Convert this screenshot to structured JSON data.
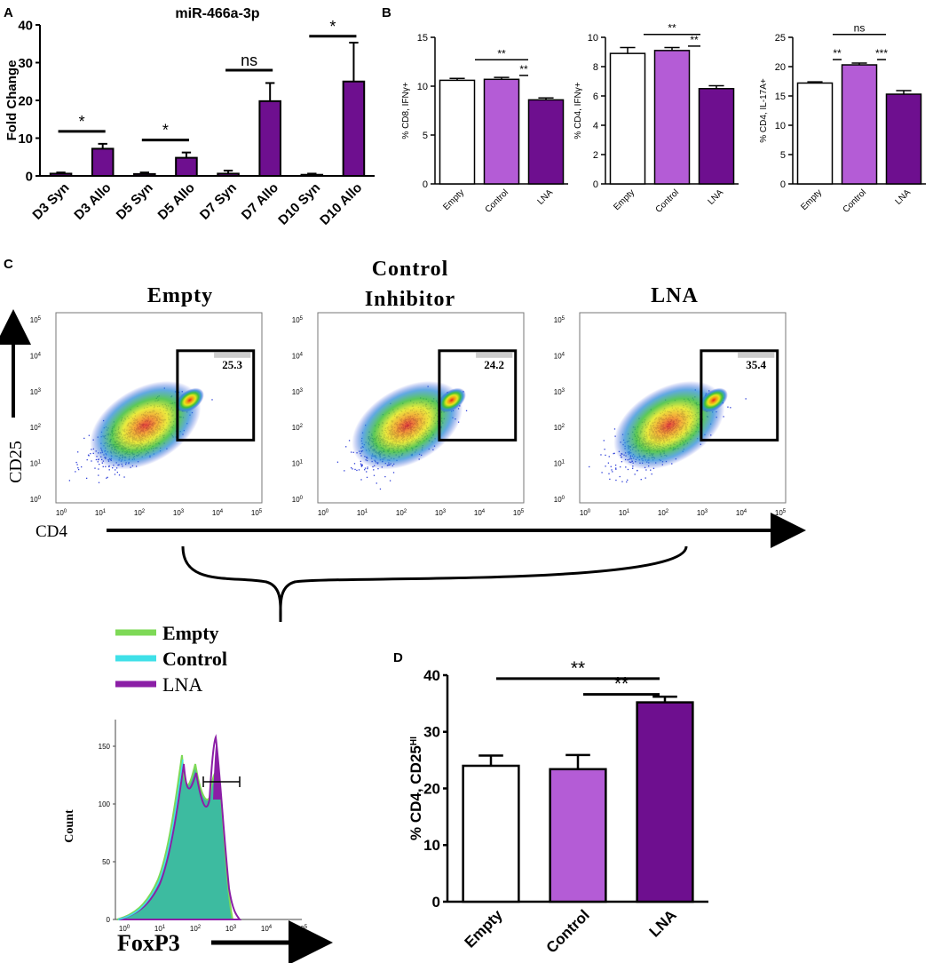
{
  "panel_labels": {
    "a": "A",
    "b": "B",
    "c": "C",
    "d": "D"
  },
  "colors": {
    "empty_fill": "#ffffff",
    "control_fill": "#b45cd6",
    "lna_fill": "#6e0f8f",
    "syn_fill": "#6e0f8f",
    "hist_empty": "#7ed957",
    "hist_control": "#3fe0e8",
    "hist_lna": "#8b1fa6",
    "hist_fill": "#3dbba0"
  },
  "chart_data": [
    {
      "id": "A",
      "type": "bar",
      "title": "miR-466a-3p",
      "ylabel": "Fold Change",
      "ylim": [
        0,
        40
      ],
      "yticks": [
        "0",
        "10",
        "20",
        "30",
        "40"
      ],
      "categories": [
        "D3 Syn",
        "D3 Allo",
        "D5 Syn",
        "D5 Allo",
        "D7 Syn",
        "D7 Allo",
        "D10 Syn",
        "D10 Allo"
      ],
      "values": [
        0.6,
        7.2,
        0.5,
        4.8,
        0.6,
        19.8,
        0.3,
        25
      ],
      "errors": [
        0.3,
        1.3,
        0.4,
        1.4,
        0.8,
        4.8,
        0.3,
        10.3
      ],
      "annotations": [
        {
          "pair": [
            0,
            1
          ],
          "label": "*",
          "y": 11.8
        },
        {
          "pair": [
            2,
            3
          ],
          "label": "*",
          "y": 9.5
        },
        {
          "pair": [
            4,
            5
          ],
          "label": "ns",
          "y": 28
        },
        {
          "pair": [
            6,
            7
          ],
          "label": "*",
          "y": 37
        }
      ]
    },
    {
      "id": "B1",
      "type": "bar",
      "ylabel": "% CD8, IFNγ+",
      "ylim": [
        0,
        15
      ],
      "yticks": [
        "0",
        "5",
        "10",
        "15"
      ],
      "categories": [
        "Empty",
        "Control",
        "LNA"
      ],
      "values": [
        10.6,
        10.7,
        8.6
      ],
      "errors": [
        0.2,
        0.2,
        0.2
      ],
      "annotations": [
        {
          "pair": [
            0,
            2
          ],
          "label": "**",
          "y": 12.7
        },
        {
          "pair": [
            1,
            2
          ],
          "label": "**",
          "y": 11.1
        }
      ]
    },
    {
      "id": "B2",
      "type": "bar",
      "ylabel": "% CD4, IFNγ+",
      "ylim": [
        0,
        10
      ],
      "yticks": [
        "0",
        "2",
        "4",
        "6",
        "8",
        "10"
      ],
      "categories": [
        "Empty",
        "Control",
        "LNA"
      ],
      "values": [
        8.9,
        9.1,
        6.5
      ],
      "errors": [
        0.4,
        0.2,
        0.2
      ],
      "annotations": [
        {
          "pair": [
            0,
            2
          ],
          "label": "**",
          "y": 10.2
        },
        {
          "pair": [
            1,
            2
          ],
          "label": "**",
          "y": 9.4
        }
      ]
    },
    {
      "id": "B3",
      "type": "bar",
      "ylabel": "% CD4, IL-17A+",
      "ylim": [
        0,
        25
      ],
      "yticks": [
        "0",
        "5",
        "10",
        "15",
        "20",
        "25"
      ],
      "categories": [
        "Empty",
        "Control",
        "LNA"
      ],
      "values": [
        17.2,
        20.3,
        15.3
      ],
      "errors": [
        0.2,
        0.3,
        0.6
      ],
      "annotations": [
        {
          "pair": [
            0,
            2
          ],
          "label": "ns",
          "y": 25.5
        },
        {
          "pair": [
            0,
            1
          ],
          "label": "**",
          "y": 21.2
        },
        {
          "pair": [
            1,
            2
          ],
          "label": "***",
          "y": 21.2
        }
      ]
    },
    {
      "id": "D",
      "type": "bar",
      "ylabel": "% CD4, CD25",
      "ylabel_sup": "HI",
      "ylim": [
        0,
        40
      ],
      "yticks": [
        "0",
        "10",
        "20",
        "30",
        "40"
      ],
      "categories": [
        "Empty",
        "Control",
        "LNA"
      ],
      "values": [
        24,
        23.4,
        35.2
      ],
      "errors": [
        1.8,
        2.5,
        1.0
      ],
      "annotations": [
        {
          "pair": [
            0,
            2
          ],
          "label": "**",
          "y": 39.4
        },
        {
          "pair": [
            1,
            2
          ],
          "label": "**",
          "y": 36.6
        }
      ]
    }
  ],
  "flow": {
    "titles": [
      "Empty",
      "Control",
      "Inhibitor",
      "LNA"
    ],
    "gate_values": [
      "25.3",
      "24.2",
      "35.4"
    ],
    "y_axis_label": "CD25",
    "x_axis_label": "CD4",
    "ticks": [
      "10",
      "10",
      "10",
      "10",
      "10",
      "10"
    ],
    "tick_exps": [
      "0",
      "1",
      "2",
      "3",
      "4",
      "5"
    ]
  },
  "histogram": {
    "legend": [
      "Empty",
      "Control",
      "LNA"
    ],
    "ylabel": "Count",
    "xlabel": "FoxP3",
    "yticks": [
      "0",
      "50",
      "100",
      "150"
    ]
  }
}
